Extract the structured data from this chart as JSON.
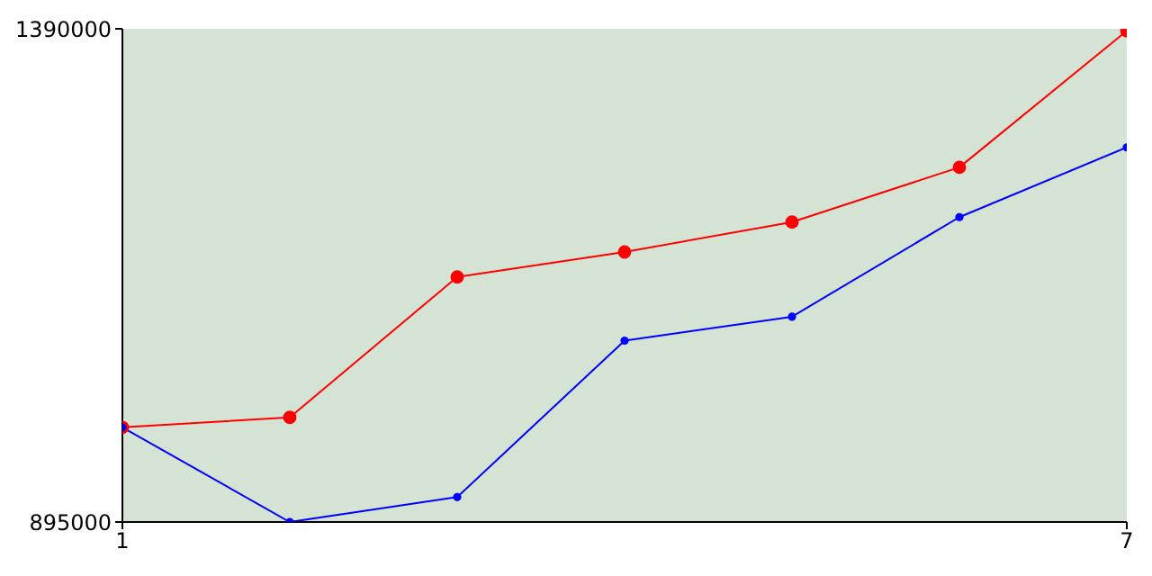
{
  "chart_data": {
    "type": "line",
    "x": [
      1,
      2,
      3,
      4,
      5,
      6,
      7
    ],
    "series": [
      {
        "color": "#ff0000",
        "values": [
          990000,
          1000000,
          1141000,
          1166000,
          1196000,
          1251000,
          1388000
        ]
      },
      {
        "color": "#0000ff",
        "values": [
          990000,
          895000,
          920000,
          1077000,
          1101000,
          1201000,
          1271000
        ]
      }
    ],
    "xlim": [
      1,
      7
    ],
    "xticks": [
      1,
      7
    ],
    "ylim": [
      895000,
      1390000
    ],
    "yticks": [
      895000,
      1390000
    ],
    "marker": "circle",
    "line_style": "solid",
    "grid": false,
    "legend": false
  }
}
